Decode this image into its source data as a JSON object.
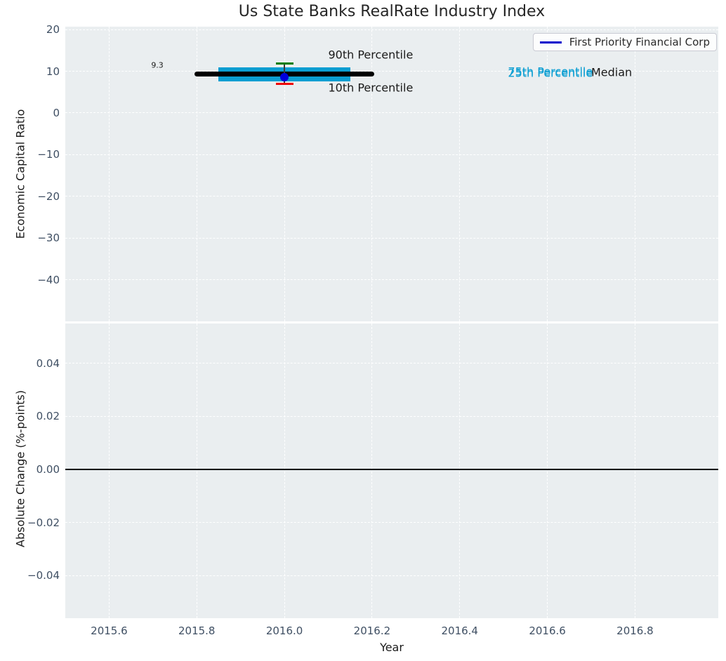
{
  "figure": {
    "title": "Us State Banks RealRate Industry Index"
  },
  "legend": {
    "label": "First Priority Financial Corp",
    "line_color": "#0000cc"
  },
  "colors": {
    "axes_background": "#eaeef0",
    "grid": "rgba(255,255,255,0.95)",
    "tick_label": "#3f4f63",
    "text": "#1a1a1a",
    "band": "#0a9ed2",
    "percentile_text": "#0a9ed2",
    "median_line": "#000000",
    "whisker": "#3a3a3a",
    "p90_cap": "#007d00",
    "p10_cap": "#ee0000",
    "company_marker": "#0000dd",
    "zero_line": "#000000"
  },
  "chart_data": [
    {
      "type": "line",
      "subplot": "top",
      "title": "Us State Banks RealRate Industry Index",
      "ylabel": "Economic Capital Ratio",
      "xlim": [
        2015.5,
        2016.99
      ],
      "ylim": [
        -50,
        20.7
      ],
      "xticks": [
        2015.6,
        2015.8,
        2016.0,
        2016.2,
        2016.4,
        2016.6,
        2016.8
      ],
      "x_tick_labels_visible": false,
      "yticks": [
        20,
        10,
        0,
        -10,
        -20,
        -30,
        -40
      ],
      "ytick_labels": [
        "20",
        "10",
        "0",
        "−10",
        "−20",
        "−30",
        "−40"
      ],
      "grid": true,
      "legend_position": "upper right",
      "legend_entries": [
        "First Priority Financial Corp"
      ],
      "industry_percentiles": {
        "x_center": 2016.0,
        "median": {
          "value": 9.3,
          "x_start": 2015.8,
          "x_end": 2016.2
        },
        "band_x_start": 2015.85,
        "band_x_end": 2016.15,
        "p75": 11.0,
        "p25": 7.6,
        "p90": 11.8,
        "p10": 7.0
      },
      "company_point": {
        "name": "First Priority Financial Corp",
        "x": 2016.0,
        "value": 8.5
      },
      "annotations": [
        {
          "text": "9.3",
          "x": 2015.71,
          "y": 11.5,
          "color": "#1a1a1a",
          "size": 11,
          "align": "center"
        },
        {
          "text": "90th Percentile",
          "x": 2016.1,
          "y": 14.0,
          "color": "#1a1a1a",
          "size": 16,
          "align": "left"
        },
        {
          "text": "10th Percentile",
          "x": 2016.1,
          "y": 6.1,
          "color": "#1a1a1a",
          "size": 16,
          "align": "left"
        },
        {
          "text": "75th Percentile",
          "x": 2016.51,
          "y": 9.9,
          "color": "#0a9ed2",
          "size": 16,
          "align": "left"
        },
        {
          "text": "25th Percentile",
          "x": 2016.51,
          "y": 9.55,
          "color": "#0a9ed2",
          "size": 16,
          "align": "left"
        },
        {
          "text": "Median",
          "x": 2016.7,
          "y": 9.7,
          "color": "#1a1a1a",
          "size": 16,
          "align": "left"
        }
      ]
    },
    {
      "type": "line",
      "subplot": "bottom",
      "ylabel": "Absolute Change (%-points)",
      "xlabel": "Year",
      "xlim": [
        2015.5,
        2016.99
      ],
      "ylim": [
        -0.056,
        0.055
      ],
      "xticks": [
        2015.6,
        2015.8,
        2016.0,
        2016.2,
        2016.4,
        2016.6,
        2016.8
      ],
      "xtick_labels": [
        "2015.6",
        "2015.8",
        "2016.0",
        "2016.2",
        "2016.4",
        "2016.6",
        "2016.8"
      ],
      "x_tick_labels_visible": true,
      "yticks": [
        0.04,
        0.02,
        0.0,
        -0.02,
        -0.04
      ],
      "ytick_labels": [
        "0.04",
        "0.02",
        "0.00",
        "−0.02",
        "−0.04"
      ],
      "grid": true,
      "zero_line_y": 0.0,
      "series": []
    }
  ]
}
